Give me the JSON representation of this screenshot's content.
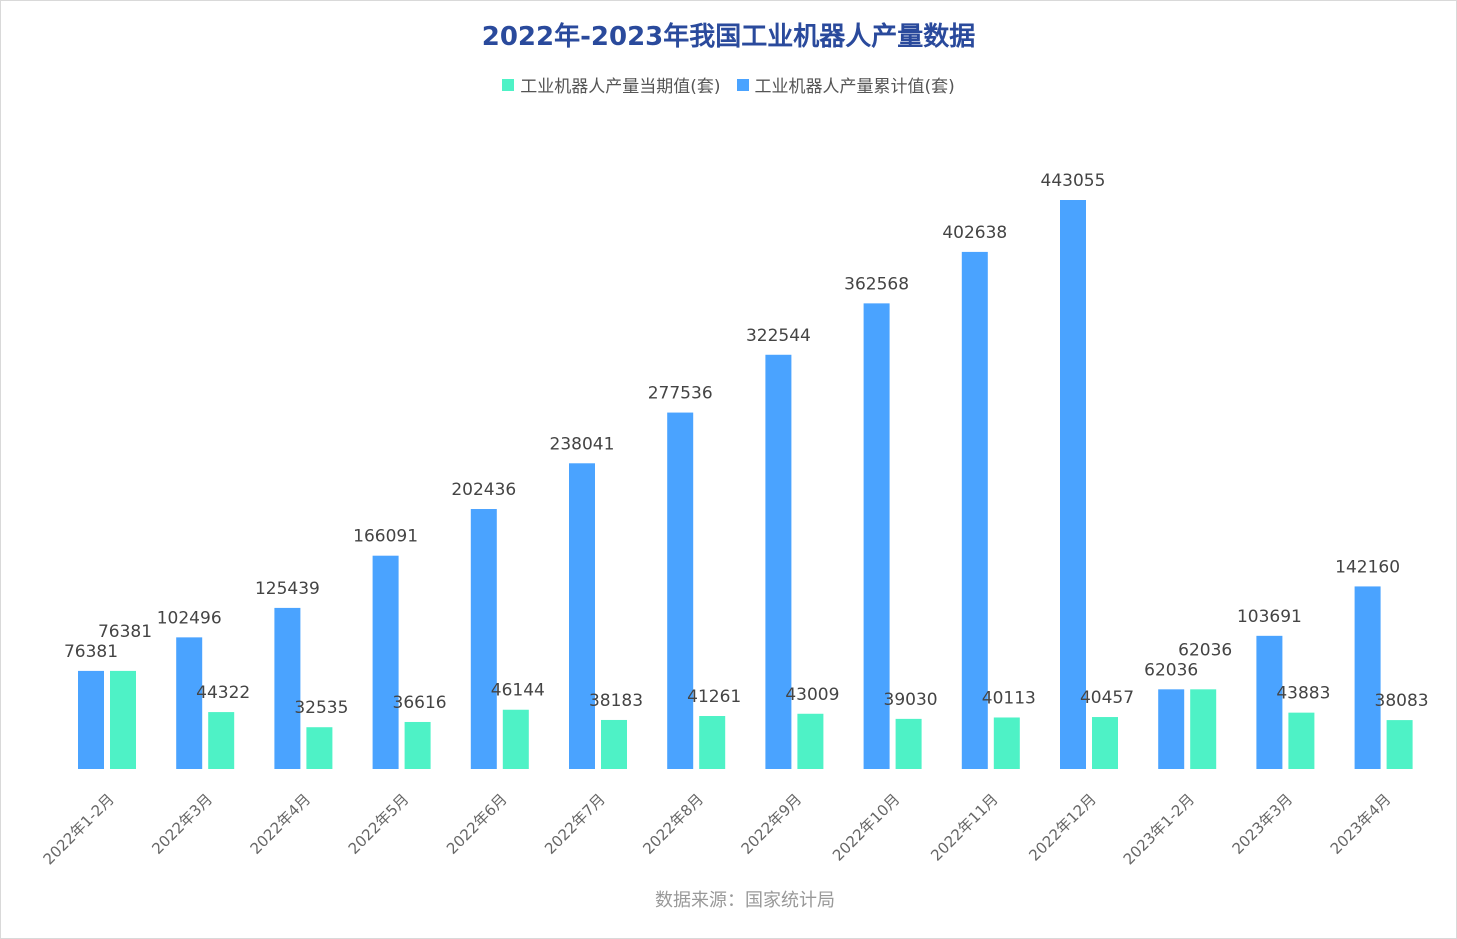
{
  "chart_data": {
    "type": "bar",
    "title": "2022年-2023年我国工业机器人产量数据",
    "categories": [
      "2022年1-2月",
      "2022年3月",
      "2022年4月",
      "2022年5月",
      "2022年6月",
      "2022年7月",
      "2022年8月",
      "2022年9月",
      "2022年10月",
      "2022年11月",
      "2022年12月",
      "2023年1-2月",
      "2023年3月",
      "2023年4月"
    ],
    "series": [
      {
        "name": "工业机器人产量当期值(套)",
        "color": "#4ef2c6",
        "values": [
          76381,
          44322,
          32535,
          36616,
          46144,
          38183,
          41261,
          43009,
          39030,
          40113,
          40457,
          62036,
          43883,
          38083
        ]
      },
      {
        "name": "工业机器人产量累计值(套)",
        "color": "#4aa3ff",
        "values": [
          76381,
          102496,
          125439,
          166091,
          202436,
          238041,
          277536,
          322544,
          362568,
          402638,
          443055,
          62036,
          103691,
          142160
        ]
      }
    ],
    "ylim": [
      0,
      443055
    ],
    "grid": false,
    "legend_position": "top",
    "source": "数据来源：国家统计局"
  }
}
